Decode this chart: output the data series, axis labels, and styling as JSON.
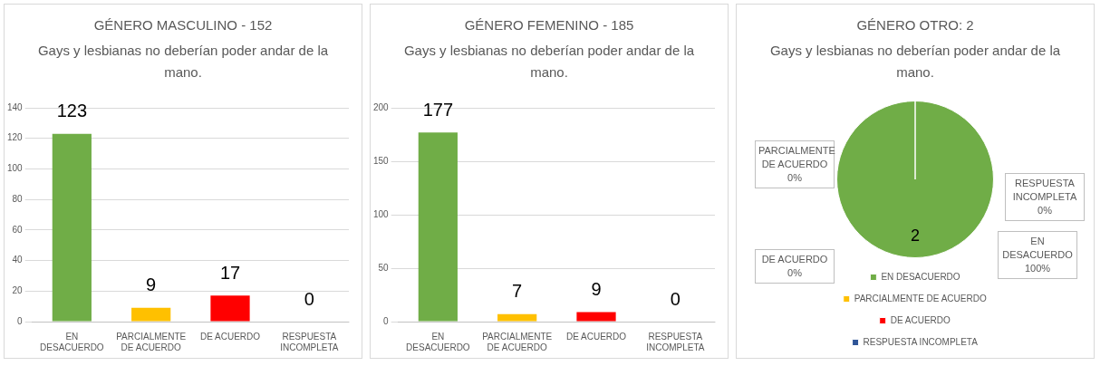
{
  "chart_data": [
    {
      "type": "bar",
      "title": "GÉNERO MASCULINO - 152",
      "subtitle": "Gays y lesbianas no deberían poder andar de la mano.",
      "categories": [
        "EN DESACUERDO",
        "PARCIALMENTE DE ACUERDO",
        "DE ACUERDO",
        "RESPUESTA INCOMPLETA"
      ],
      "values": [
        123,
        9,
        17,
        0
      ],
      "colors": [
        "#70ad47",
        "#ffc000",
        "#ff0000",
        "#2f5597"
      ],
      "ylim": [
        0,
        140
      ],
      "yticks": [
        0,
        20,
        40,
        60,
        80,
        100,
        120,
        140
      ],
      "grid": "y",
      "data_labels": true
    },
    {
      "type": "bar",
      "title": "GÉNERO FEMENINO - 185",
      "subtitle": "Gays y lesbianas no deberían poder andar de la mano.",
      "categories": [
        "EN DESACUERDO",
        "PARCIALMENTE DE ACUERDO",
        "DE ACUERDO",
        "RESPUESTA INCOMPLETA"
      ],
      "values": [
        177,
        7,
        9,
        0
      ],
      "colors": [
        "#70ad47",
        "#ffc000",
        "#ff0000",
        "#2f5597"
      ],
      "ylim": [
        0,
        200
      ],
      "yticks": [
        0,
        50,
        100,
        150,
        200
      ],
      "grid": "y",
      "data_labels": true
    },
    {
      "type": "pie",
      "title": "GÉNERO OTRO: 2",
      "subtitle": "Gays y lesbianas no deberían poder andar de la mano.",
      "categories": [
        "EN DESACUERDO",
        "PARCIALMENTE DE ACUERDO",
        "DE ACUERDO",
        "RESPUESTA INCOMPLETA"
      ],
      "values": [
        2,
        0,
        0,
        0
      ],
      "colors": [
        "#70ad47",
        "#ffc000",
        "#ff0000",
        "#2f5597"
      ],
      "value_labels": [
        "2",
        null,
        null,
        null
      ],
      "legend": "bottom",
      "annotations": [
        "PARCIALMENTE DE ACUERDO 0%",
        "RESPUESTA INCOMPLETA 0%",
        "DE ACUERDO 0%",
        "EN DESACUERDO 100%"
      ]
    }
  ]
}
